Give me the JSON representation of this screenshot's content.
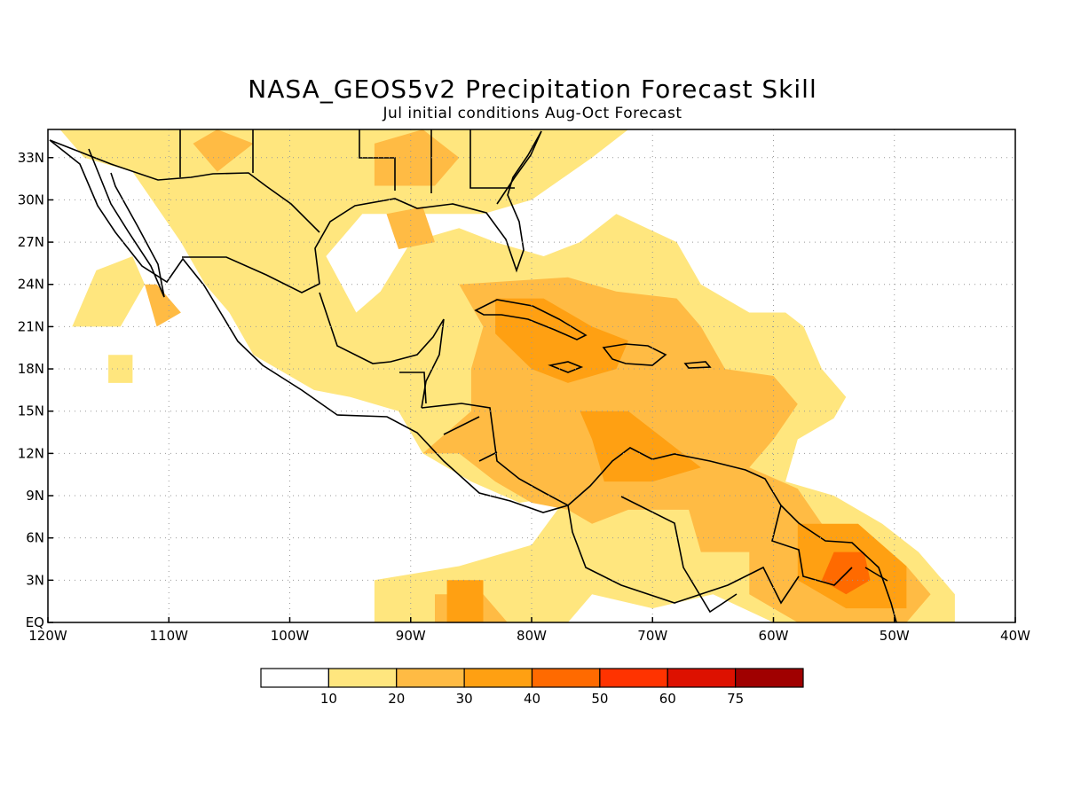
{
  "title": "NASA_GEOS5v2 Precipitation Forecast Skill",
  "subtitle": "Jul initial conditions  Aug-Oct Forecast",
  "map": {
    "lon_range": [
      -120,
      -40
    ],
    "lat_range": [
      0,
      35
    ],
    "lon_ticks": [
      {
        "value": -120,
        "label": "120W"
      },
      {
        "value": -110,
        "label": "110W"
      },
      {
        "value": -100,
        "label": "100W"
      },
      {
        "value": -90,
        "label": "90W"
      },
      {
        "value": -80,
        "label": "80W"
      },
      {
        "value": -70,
        "label": "70W"
      },
      {
        "value": -60,
        "label": "60W"
      },
      {
        "value": -50,
        "label": "50W"
      },
      {
        "value": -40,
        "label": "40W"
      }
    ],
    "lat_ticks": [
      {
        "value": 0,
        "label": "EQ"
      },
      {
        "value": 3,
        "label": "3N"
      },
      {
        "value": 6,
        "label": "6N"
      },
      {
        "value": 9,
        "label": "9N"
      },
      {
        "value": 12,
        "label": "12N"
      },
      {
        "value": 15,
        "label": "15N"
      },
      {
        "value": 18,
        "label": "18N"
      },
      {
        "value": 21,
        "label": "21N"
      },
      {
        "value": 24,
        "label": "24N"
      },
      {
        "value": 27,
        "label": "27N"
      },
      {
        "value": 30,
        "label": "30N"
      },
      {
        "value": 33,
        "label": "33N"
      }
    ],
    "gridlines": true
  },
  "colorbar": {
    "colors": [
      "#ffffff",
      "#ffe67e",
      "#ffbb44",
      "#ffa012",
      "#ff6a00",
      "#ff3300",
      "#dd1100",
      "#a00000"
    ],
    "labels": [
      "10",
      "20",
      "30",
      "40",
      "50",
      "60",
      "75"
    ]
  },
  "skill_regions": [
    {
      "level": 1,
      "points": [
        [
          -94.5,
          22
        ],
        [
          -92.5,
          23.5
        ],
        [
          -90,
          27
        ],
        [
          -86,
          28
        ],
        [
          -83,
          27
        ],
        [
          -79,
          26
        ],
        [
          -76,
          27
        ],
        [
          -73,
          29
        ],
        [
          -68,
          27
        ],
        [
          -66,
          24
        ],
        [
          -62,
          22
        ],
        [
          -59,
          22
        ],
        [
          -57.5,
          21
        ],
        [
          -56,
          18
        ],
        [
          -54,
          16
        ],
        [
          -55,
          14.5
        ],
        [
          -58,
          13
        ],
        [
          -59,
          10
        ],
        [
          -55,
          9
        ],
        [
          -51,
          7
        ],
        [
          -48,
          5
        ],
        [
          -45,
          2
        ],
        [
          -45,
          0
        ],
        [
          -60,
          0
        ],
        [
          -65,
          2
        ],
        [
          -70,
          1
        ],
        [
          -75,
          2
        ],
        [
          -77,
          0
        ],
        [
          -93,
          0
        ],
        [
          -93,
          3
        ],
        [
          -86,
          4
        ],
        [
          -80,
          5.5
        ],
        [
          -77,
          9
        ],
        [
          -81,
          8.5
        ],
        [
          -85,
          10
        ],
        [
          -89,
          12
        ],
        [
          -91,
          15
        ],
        [
          -95,
          16
        ],
        [
          -98,
          16.5
        ],
        [
          -100,
          17.5
        ],
        [
          -103,
          19
        ],
        [
          -105,
          22
        ],
        [
          -107,
          24
        ],
        [
          -109,
          27
        ],
        [
          -113,
          32
        ],
        [
          -117,
          33
        ],
        [
          -119,
          35
        ],
        [
          -72,
          35
        ],
        [
          -75,
          33
        ],
        [
          -80,
          30
        ],
        [
          -84,
          29
        ],
        [
          -88,
          29
        ],
        [
          -94,
          29
        ],
        [
          -97,
          26
        ]
      ]
    },
    {
      "level": 1,
      "points": [
        [
          -118,
          21
        ],
        [
          -114,
          21
        ],
        [
          -112,
          24
        ],
        [
          -113,
          26
        ],
        [
          -116,
          25
        ]
      ]
    },
    {
      "level": 1,
      "points": [
        [
          -115,
          19
        ],
        [
          -113,
          19
        ],
        [
          -113,
          17
        ],
        [
          -115,
          17
        ]
      ]
    },
    {
      "level": 2,
      "points": [
        [
          -93,
          31
        ],
        [
          -88,
          31
        ],
        [
          -86,
          33
        ],
        [
          -89,
          35
        ],
        [
          -93,
          34
        ]
      ]
    },
    {
      "level": 2,
      "points": [
        [
          -106,
          32
        ],
        [
          -103,
          34
        ],
        [
          -106,
          35
        ],
        [
          -108,
          34
        ]
      ]
    },
    {
      "level": 2,
      "points": [
        [
          -92,
          29
        ],
        [
          -89,
          29.5
        ],
        [
          -88,
          27
        ],
        [
          -91,
          26.5
        ]
      ]
    },
    {
      "level": 2,
      "points": [
        [
          -86,
          24
        ],
        [
          -77,
          24.5
        ],
        [
          -73,
          23.5
        ],
        [
          -68,
          23
        ],
        [
          -66,
          21
        ],
        [
          -64,
          18
        ],
        [
          -60,
          17.5
        ],
        [
          -58,
          15.5
        ],
        [
          -60,
          13
        ],
        [
          -62,
          11
        ],
        [
          -58,
          9.5
        ],
        [
          -56,
          7
        ],
        [
          -52,
          6
        ],
        [
          -49,
          4
        ],
        [
          -47,
          2
        ],
        [
          -49,
          0
        ],
        [
          -58,
          0
        ],
        [
          -62,
          2
        ],
        [
          -62,
          5
        ],
        [
          -66,
          5
        ],
        [
          -67,
          8
        ],
        [
          -72,
          8
        ],
        [
          -75,
          7
        ],
        [
          -77,
          8
        ],
        [
          -80,
          8.5
        ],
        [
          -83,
          10
        ],
        [
          -86,
          12
        ],
        [
          -89,
          12
        ],
        [
          -85,
          15
        ],
        [
          -85,
          18
        ],
        [
          -84,
          21
        ]
      ]
    },
    {
      "level": 2,
      "points": [
        [
          -112,
          24
        ],
        [
          -111,
          24
        ],
        [
          -109,
          22
        ],
        [
          -111,
          21
        ]
      ]
    },
    {
      "level": 2,
      "points": [
        [
          -88,
          2
        ],
        [
          -84,
          2
        ],
        [
          -82,
          0
        ],
        [
          -88,
          0
        ]
      ]
    },
    {
      "level": 3,
      "points": [
        [
          -83,
          23
        ],
        [
          -79,
          23
        ],
        [
          -75,
          21
        ],
        [
          -72,
          20
        ],
        [
          -73,
          18
        ],
        [
          -77,
          17
        ],
        [
          -80,
          18
        ],
        [
          -83,
          20.5
        ]
      ]
    },
    {
      "level": 3,
      "points": [
        [
          -76,
          15
        ],
        [
          -72,
          15
        ],
        [
          -69,
          13
        ],
        [
          -66,
          11
        ],
        [
          -70,
          10
        ],
        [
          -74,
          10
        ],
        [
          -75,
          13
        ]
      ]
    },
    {
      "level": 3,
      "points": [
        [
          -58,
          7
        ],
        [
          -53,
          7
        ],
        [
          -49,
          4
        ],
        [
          -49,
          1
        ],
        [
          -54,
          1
        ],
        [
          -58,
          3
        ]
      ]
    },
    {
      "level": 3,
      "points": [
        [
          -87,
          3
        ],
        [
          -84,
          3
        ],
        [
          -84,
          0
        ],
        [
          -87,
          0
        ]
      ]
    },
    {
      "level": 4,
      "points": [
        [
          -55,
          5
        ],
        [
          -52.5,
          5
        ],
        [
          -52,
          3
        ],
        [
          -54,
          2
        ],
        [
          -56,
          3
        ]
      ]
    }
  ]
}
